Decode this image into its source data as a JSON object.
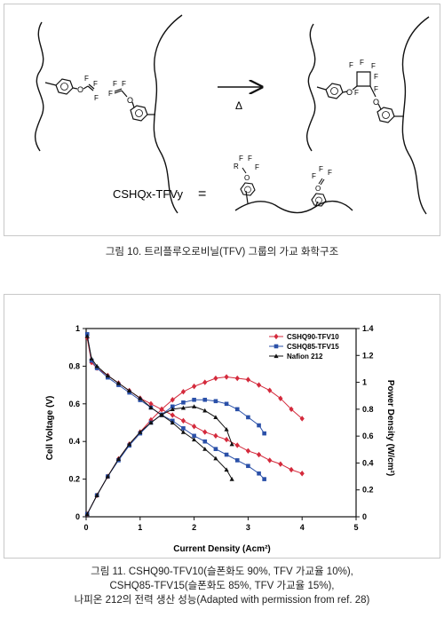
{
  "figure10": {
    "arrow_symbol": "Δ",
    "label": "CSHQx-TFVy",
    "equals": "=",
    "atom_F": "F",
    "atom_O": "O",
    "atom_R": "R",
    "caption": "그림 10. 트리플루오로비닐(TFV) 그룹의 가교 화학구조"
  },
  "figure11": {
    "caption_lines": [
      "그림 11. CSHQ90-TFV10(슬폰화도 90%, TFV 가교율 10%),",
      "CSHQ85-TFV15(슬폰화도 85%, TFV 가교율 15%),",
      "나피온 212의 전력 생산 성능(Adapted with permission from ref. 28)"
    ]
  },
  "chart_data": {
    "type": "line",
    "xlabel": "Current Density (Acm²)",
    "ylabel": "Cell Voltage (V)",
    "y2label": "Power Density (W/cm²)",
    "xlim": [
      0,
      5
    ],
    "ylim": [
      0,
      1.0
    ],
    "y2lim": [
      0,
      1.4
    ],
    "x_ticks": [
      "0",
      "1",
      "2",
      "3",
      "4",
      "5"
    ],
    "y_ticks": [
      "0",
      "0.2",
      "0.4",
      "0.6",
      "0.8",
      "1"
    ],
    "y2_ticks": [
      "0",
      "0.2",
      "0.4",
      "0.6",
      "0.8",
      "1",
      "1.2",
      "1.4"
    ],
    "legend_position": "top-right",
    "series": [
      {
        "name": "CSHQ90-TFV10",
        "color": "#d42a3c",
        "marker": "diamond",
        "voltage": {
          "x": [
            0.02,
            0.1,
            0.2,
            0.4,
            0.6,
            0.8,
            1.0,
            1.2,
            1.4,
            1.6,
            1.8,
            2.0,
            2.2,
            2.4,
            2.6,
            2.8,
            3.0,
            3.2,
            3.4,
            3.6,
            3.8,
            4.0
          ],
          "y": [
            0.95,
            0.82,
            0.79,
            0.75,
            0.71,
            0.67,
            0.63,
            0.6,
            0.57,
            0.54,
            0.51,
            0.48,
            0.45,
            0.43,
            0.41,
            0.38,
            0.35,
            0.33,
            0.3,
            0.28,
            0.25,
            0.23
          ]
        },
        "power": {
          "x": [
            0.02,
            0.2,
            0.4,
            0.6,
            0.8,
            1.0,
            1.2,
            1.4,
            1.6,
            1.8,
            2.0,
            2.2,
            2.4,
            2.6,
            2.8,
            3.0,
            3.2,
            3.4,
            3.6,
            3.8,
            4.0
          ],
          "y": [
            0.02,
            0.16,
            0.3,
            0.43,
            0.54,
            0.63,
            0.72,
            0.8,
            0.87,
            0.93,
            0.97,
            1.0,
            1.03,
            1.04,
            1.03,
            1.02,
            0.98,
            0.94,
            0.88,
            0.8,
            0.73
          ]
        }
      },
      {
        "name": "CSHQ85-TFV15",
        "color": "#2a50a8",
        "marker": "square",
        "voltage": {
          "x": [
            0.02,
            0.1,
            0.2,
            0.4,
            0.6,
            0.8,
            1.0,
            1.2,
            1.4,
            1.6,
            1.8,
            2.0,
            2.2,
            2.4,
            2.6,
            2.8,
            3.0,
            3.2,
            3.3
          ],
          "y": [
            0.97,
            0.83,
            0.79,
            0.74,
            0.7,
            0.66,
            0.62,
            0.58,
            0.54,
            0.51,
            0.47,
            0.43,
            0.4,
            0.36,
            0.33,
            0.3,
            0.27,
            0.23,
            0.2
          ]
        },
        "power": {
          "x": [
            0.02,
            0.2,
            0.4,
            0.6,
            0.8,
            1.0,
            1.2,
            1.4,
            1.6,
            1.8,
            2.0,
            2.2,
            2.4,
            2.6,
            2.8,
            3.0,
            3.2,
            3.3
          ],
          "y": [
            0.02,
            0.16,
            0.3,
            0.42,
            0.53,
            0.62,
            0.7,
            0.76,
            0.82,
            0.85,
            0.87,
            0.87,
            0.86,
            0.84,
            0.8,
            0.74,
            0.68,
            0.62
          ]
        }
      },
      {
        "name": "Nafion 212",
        "color": "#111111",
        "marker": "triangle",
        "voltage": {
          "x": [
            0.02,
            0.1,
            0.2,
            0.4,
            0.6,
            0.8,
            1.0,
            1.2,
            1.4,
            1.6,
            1.8,
            2.0,
            2.2,
            2.4,
            2.6,
            2.7
          ],
          "y": [
            0.96,
            0.84,
            0.8,
            0.75,
            0.71,
            0.67,
            0.63,
            0.58,
            0.54,
            0.5,
            0.45,
            0.41,
            0.36,
            0.31,
            0.25,
            0.2
          ]
        },
        "power": {
          "x": [
            0.02,
            0.2,
            0.4,
            0.6,
            0.8,
            1.0,
            1.2,
            1.4,
            1.6,
            1.8,
            2.0,
            2.2,
            2.4,
            2.6,
            2.7
          ],
          "y": [
            0.02,
            0.16,
            0.3,
            0.43,
            0.54,
            0.63,
            0.7,
            0.76,
            0.8,
            0.81,
            0.82,
            0.79,
            0.74,
            0.65,
            0.54
          ]
        }
      }
    ]
  }
}
